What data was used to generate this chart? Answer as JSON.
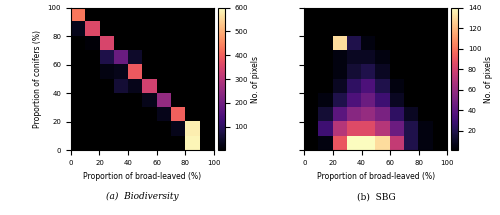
{
  "biodiversity": {
    "matrix": [
      [
        0,
        0,
        0,
        0,
        0,
        0,
        0,
        0,
        0,
        0
      ],
      [
        0,
        0,
        0,
        0,
        0,
        0,
        0,
        0,
        580,
        0
      ],
      [
        0,
        0,
        0,
        0,
        0,
        0,
        0,
        400,
        0,
        0
      ],
      [
        0,
        0,
        0,
        0,
        0,
        0,
        250,
        0,
        0,
        0
      ],
      [
        0,
        0,
        0,
        0,
        0,
        340,
        0,
        0,
        0,
        0
      ],
      [
        0,
        0,
        0,
        0,
        390,
        30,
        0,
        0,
        0,
        0
      ],
      [
        0,
        0,
        0,
        190,
        50,
        0,
        0,
        0,
        0,
        0
      ],
      [
        0,
        0,
        350,
        90,
        0,
        0,
        0,
        0,
        0,
        0
      ],
      [
        0,
        360,
        30,
        0,
        0,
        0,
        0,
        0,
        0,
        0
      ],
      [
        430,
        30,
        0,
        0,
        0,
        0,
        0,
        0,
        0,
        0
      ]
    ],
    "vmax": 600,
    "title": "(a)  Biodiversity"
  },
  "sbg": {
    "matrix": [
      [
        0,
        5,
        90,
        140,
        140,
        130,
        75,
        20,
        5,
        0
      ],
      [
        0,
        30,
        70,
        85,
        85,
        70,
        45,
        20,
        5,
        0
      ],
      [
        0,
        15,
        40,
        55,
        60,
        50,
        25,
        10,
        0,
        0
      ],
      [
        0,
        5,
        20,
        35,
        45,
        30,
        10,
        0,
        0,
        0
      ],
      [
        0,
        0,
        10,
        25,
        35,
        20,
        5,
        0,
        0,
        0
      ],
      [
        0,
        0,
        5,
        15,
        20,
        10,
        0,
        0,
        0,
        0
      ],
      [
        0,
        0,
        5,
        10,
        10,
        5,
        0,
        0,
        0,
        0
      ],
      [
        0,
        0,
        130,
        20,
        5,
        0,
        0,
        0,
        0,
        0
      ],
      [
        0,
        0,
        0,
        0,
        0,
        0,
        0,
        0,
        0,
        0
      ],
      [
        0,
        0,
        0,
        0,
        0,
        0,
        0,
        0,
        0,
        0
      ]
    ],
    "vmax": 140,
    "title": "(b)  SBG"
  },
  "xlabel": "Proportion of broad-leaved (%)",
  "ylabel": "Proportion of conifers (%)",
  "colorbar_label": "No. of pixels",
  "xticks": [
    0,
    20,
    40,
    60,
    80,
    100
  ],
  "yticks": [
    0,
    20,
    40,
    60,
    80,
    100
  ]
}
